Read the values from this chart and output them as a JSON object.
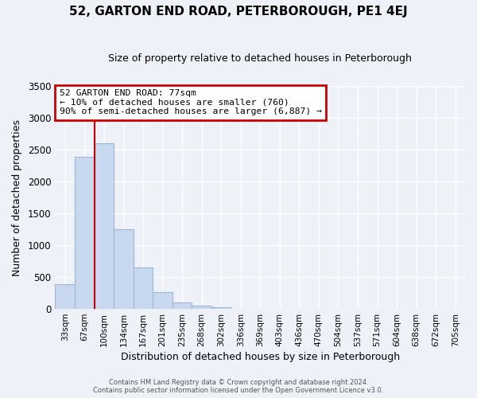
{
  "title": "52, GARTON END ROAD, PETERBOROUGH, PE1 4EJ",
  "subtitle": "Size of property relative to detached houses in Peterborough",
  "xlabel": "Distribution of detached houses by size in Peterborough",
  "ylabel": "Number of detached properties",
  "bar_labels": [
    "33sqm",
    "67sqm",
    "100sqm",
    "134sqm",
    "167sqm",
    "201sqm",
    "235sqm",
    "268sqm",
    "302sqm",
    "336sqm",
    "369sqm",
    "403sqm",
    "436sqm",
    "470sqm",
    "504sqm",
    "537sqm",
    "571sqm",
    "604sqm",
    "638sqm",
    "672sqm",
    "705sqm"
  ],
  "bar_values": [
    390,
    2390,
    2600,
    1250,
    645,
    260,
    100,
    55,
    30,
    0,
    0,
    0,
    0,
    0,
    0,
    0,
    0,
    0,
    0,
    0,
    0
  ],
  "bar_color": "#c8d8ee",
  "bar_edge_color": "#9ab8d8",
  "vline_color": "#cc0000",
  "annotation_title": "52 GARTON END ROAD: 77sqm",
  "annotation_line1": "← 10% of detached houses are smaller (760)",
  "annotation_line2": "90% of semi-detached houses are larger (6,887) →",
  "annotation_box_color": "#ffffff",
  "annotation_box_edge": "#cc0000",
  "ylim": [
    0,
    3500
  ],
  "yticks": [
    0,
    500,
    1000,
    1500,
    2000,
    2500,
    3000,
    3500
  ],
  "background_color": "#eef2f8",
  "grid_color": "#ffffff",
  "footer_line1": "Contains HM Land Registry data © Crown copyright and database right 2024.",
  "footer_line2": "Contains public sector information licensed under the Open Government Licence v3.0."
}
